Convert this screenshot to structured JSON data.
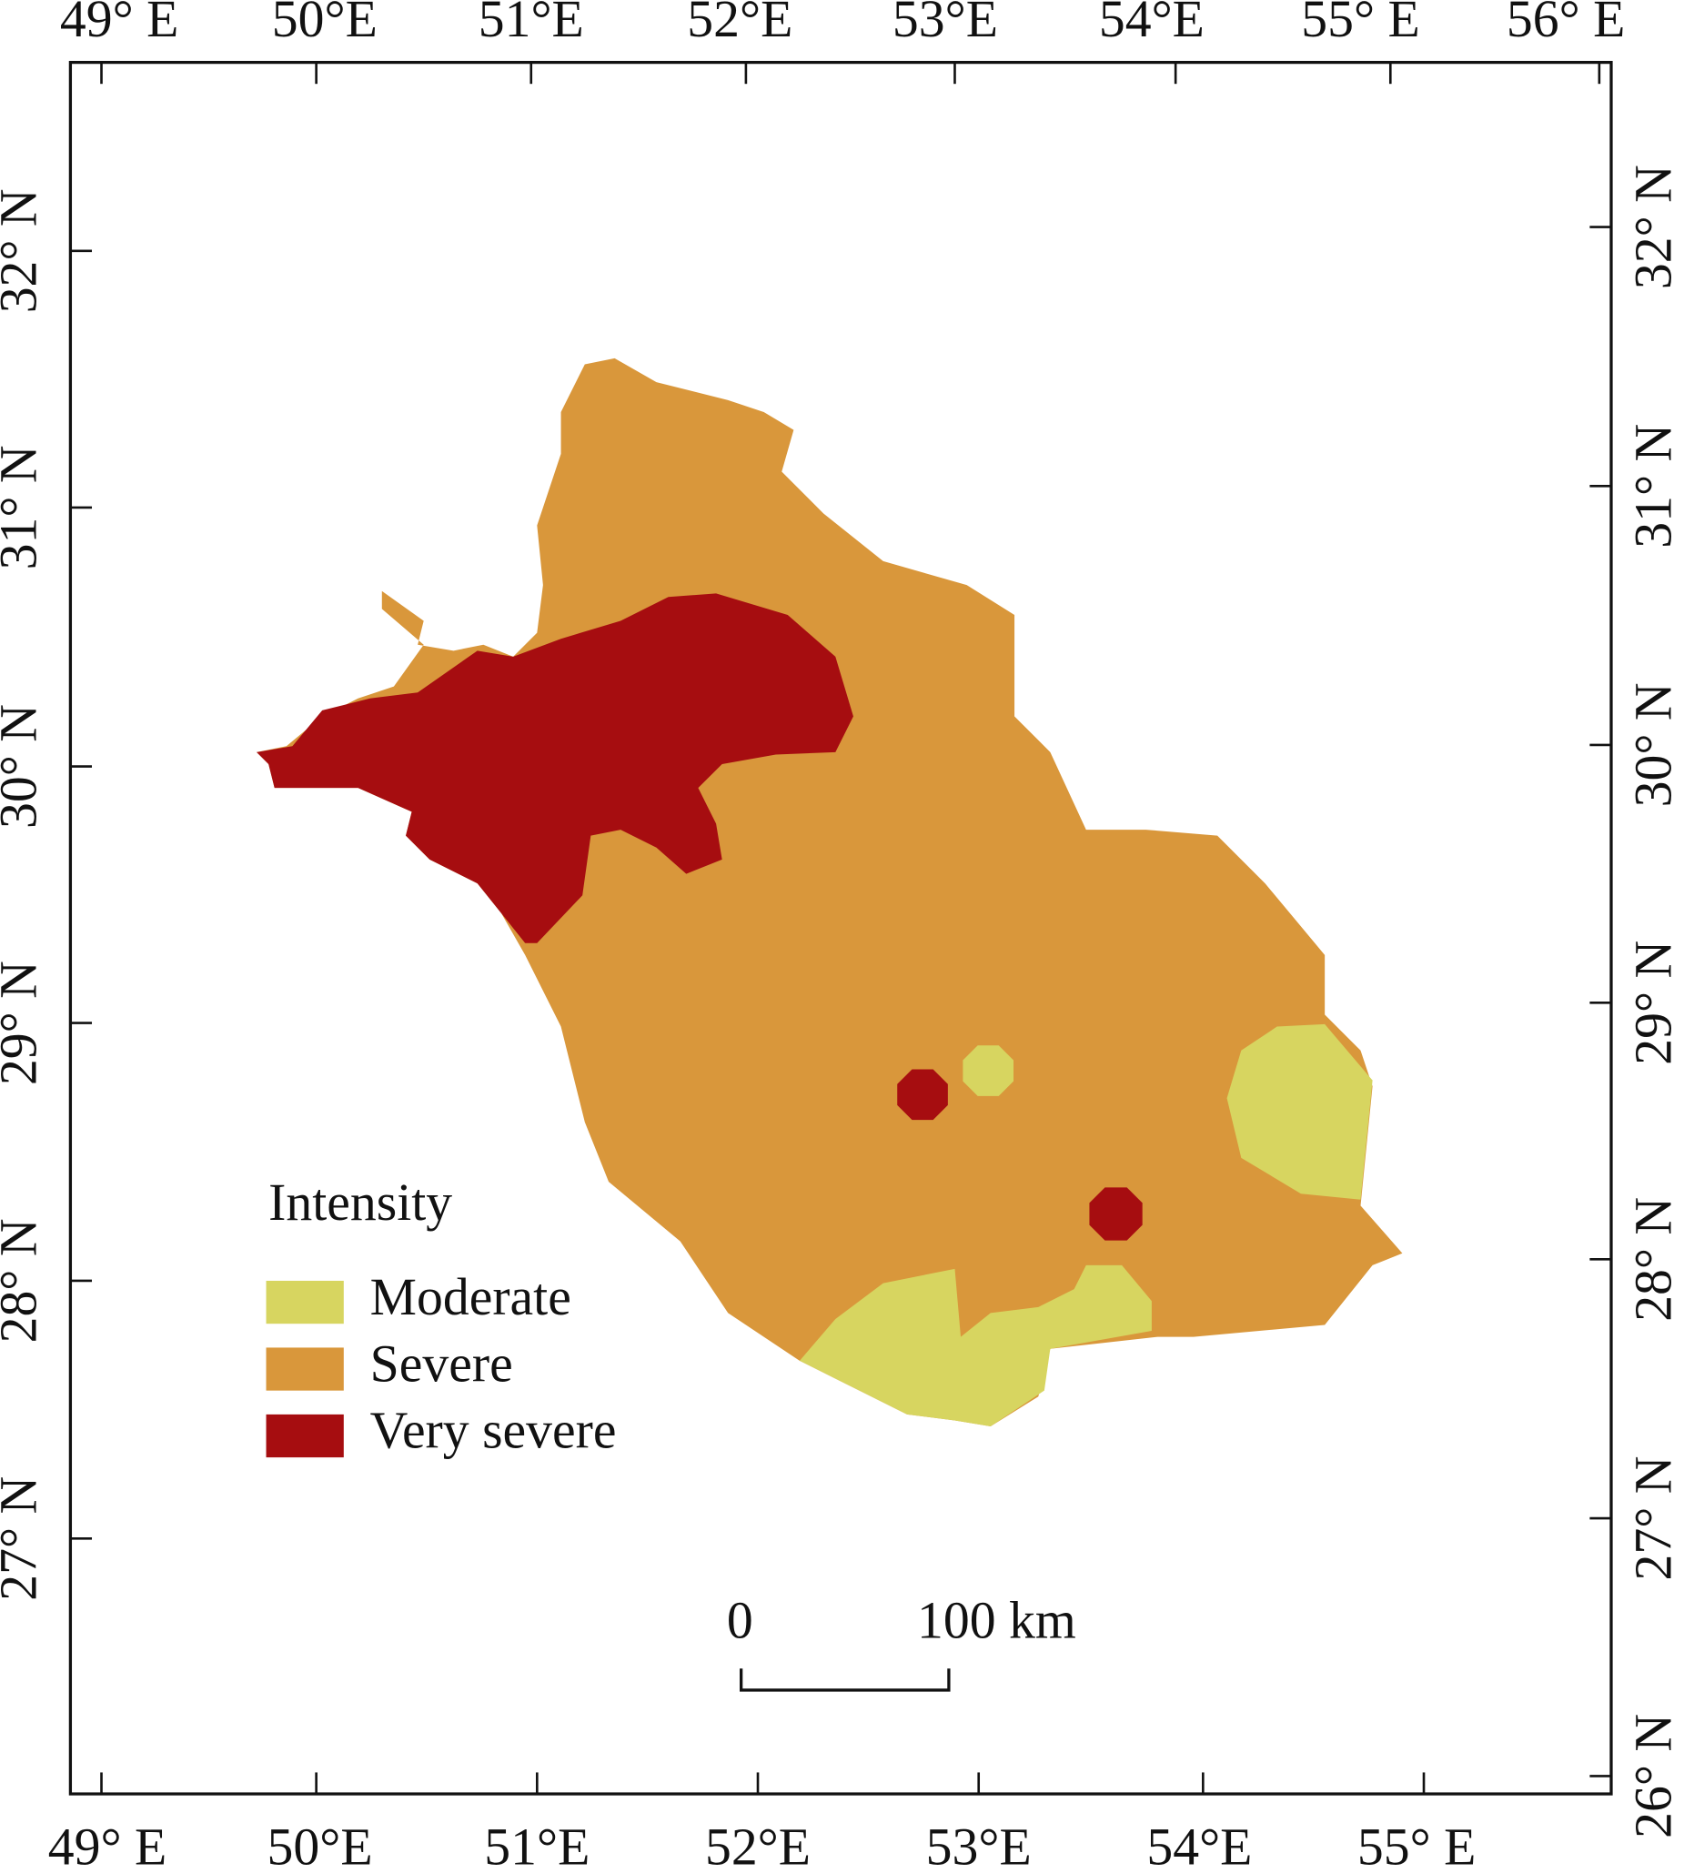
{
  "map": {
    "top_labels": [
      "49° E",
      "50°E",
      "51°E",
      "52°E",
      "53°E",
      "54°E",
      "55° E",
      "56° E"
    ],
    "bottom_labels": [
      "49° E",
      "50°E",
      "51°E",
      "52°E",
      "53°E",
      "54°E",
      "55° E"
    ],
    "left_labels": [
      "32° N",
      "31° N",
      "30° N",
      "29° N",
      "28° N",
      "27° N"
    ],
    "right_labels": [
      "32° N",
      "31° N",
      "30° N",
      "29° N",
      "28° N",
      "27° N",
      "26° N"
    ],
    "legend": {
      "title": "Intensity",
      "items": [
        {
          "label": "Moderate",
          "color": "#d7d560"
        },
        {
          "label": "Severe",
          "color": "#d9973b"
        },
        {
          "label": "Very severe",
          "color": "#a60d10"
        }
      ]
    },
    "scale_bar": {
      "start": "0",
      "end": "100 km"
    }
  }
}
